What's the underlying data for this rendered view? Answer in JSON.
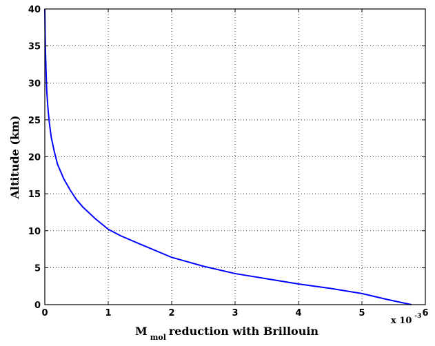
{
  "chart_data": {
    "type": "line",
    "xlabel_main": "M",
    "xlabel_sub": "mol",
    "xlabel_rest": " reduction with Brillouin",
    "x_multiplier_base": "x 10",
    "x_multiplier_exp": "-3",
    "ylabel": "Altitude (km)",
    "xlim": [
      0,
      6
    ],
    "ylim": [
      0,
      40
    ],
    "x_ticks": [
      "0",
      "1",
      "2",
      "3",
      "4",
      "5",
      "6"
    ],
    "y_ticks": [
      "0",
      "5",
      "10",
      "15",
      "20",
      "25",
      "30",
      "35",
      "40"
    ],
    "grid": true,
    "series": [
      {
        "color": "#0000ff",
        "x": [
          5.78,
          5.4,
          5.0,
          4.5,
          4.0,
          3.5,
          3.0,
          2.5,
          2.0,
          1.5,
          1.2,
          1.0,
          0.8,
          0.6,
          0.5,
          0.4,
          0.3,
          0.2,
          0.15,
          0.1,
          0.07,
          0.05,
          0.03,
          0.02,
          0.01,
          0.005,
          0.0
        ],
        "y": [
          0,
          0.7,
          1.5,
          2.2,
          2.8,
          3.5,
          4.2,
          5.2,
          6.4,
          8.2,
          9.3,
          10.2,
          11.6,
          13.2,
          14.2,
          15.5,
          17.0,
          19.0,
          20.7,
          22.7,
          24.7,
          26.5,
          29.0,
          31.5,
          34.5,
          37.0,
          40.0
        ]
      }
    ]
  }
}
